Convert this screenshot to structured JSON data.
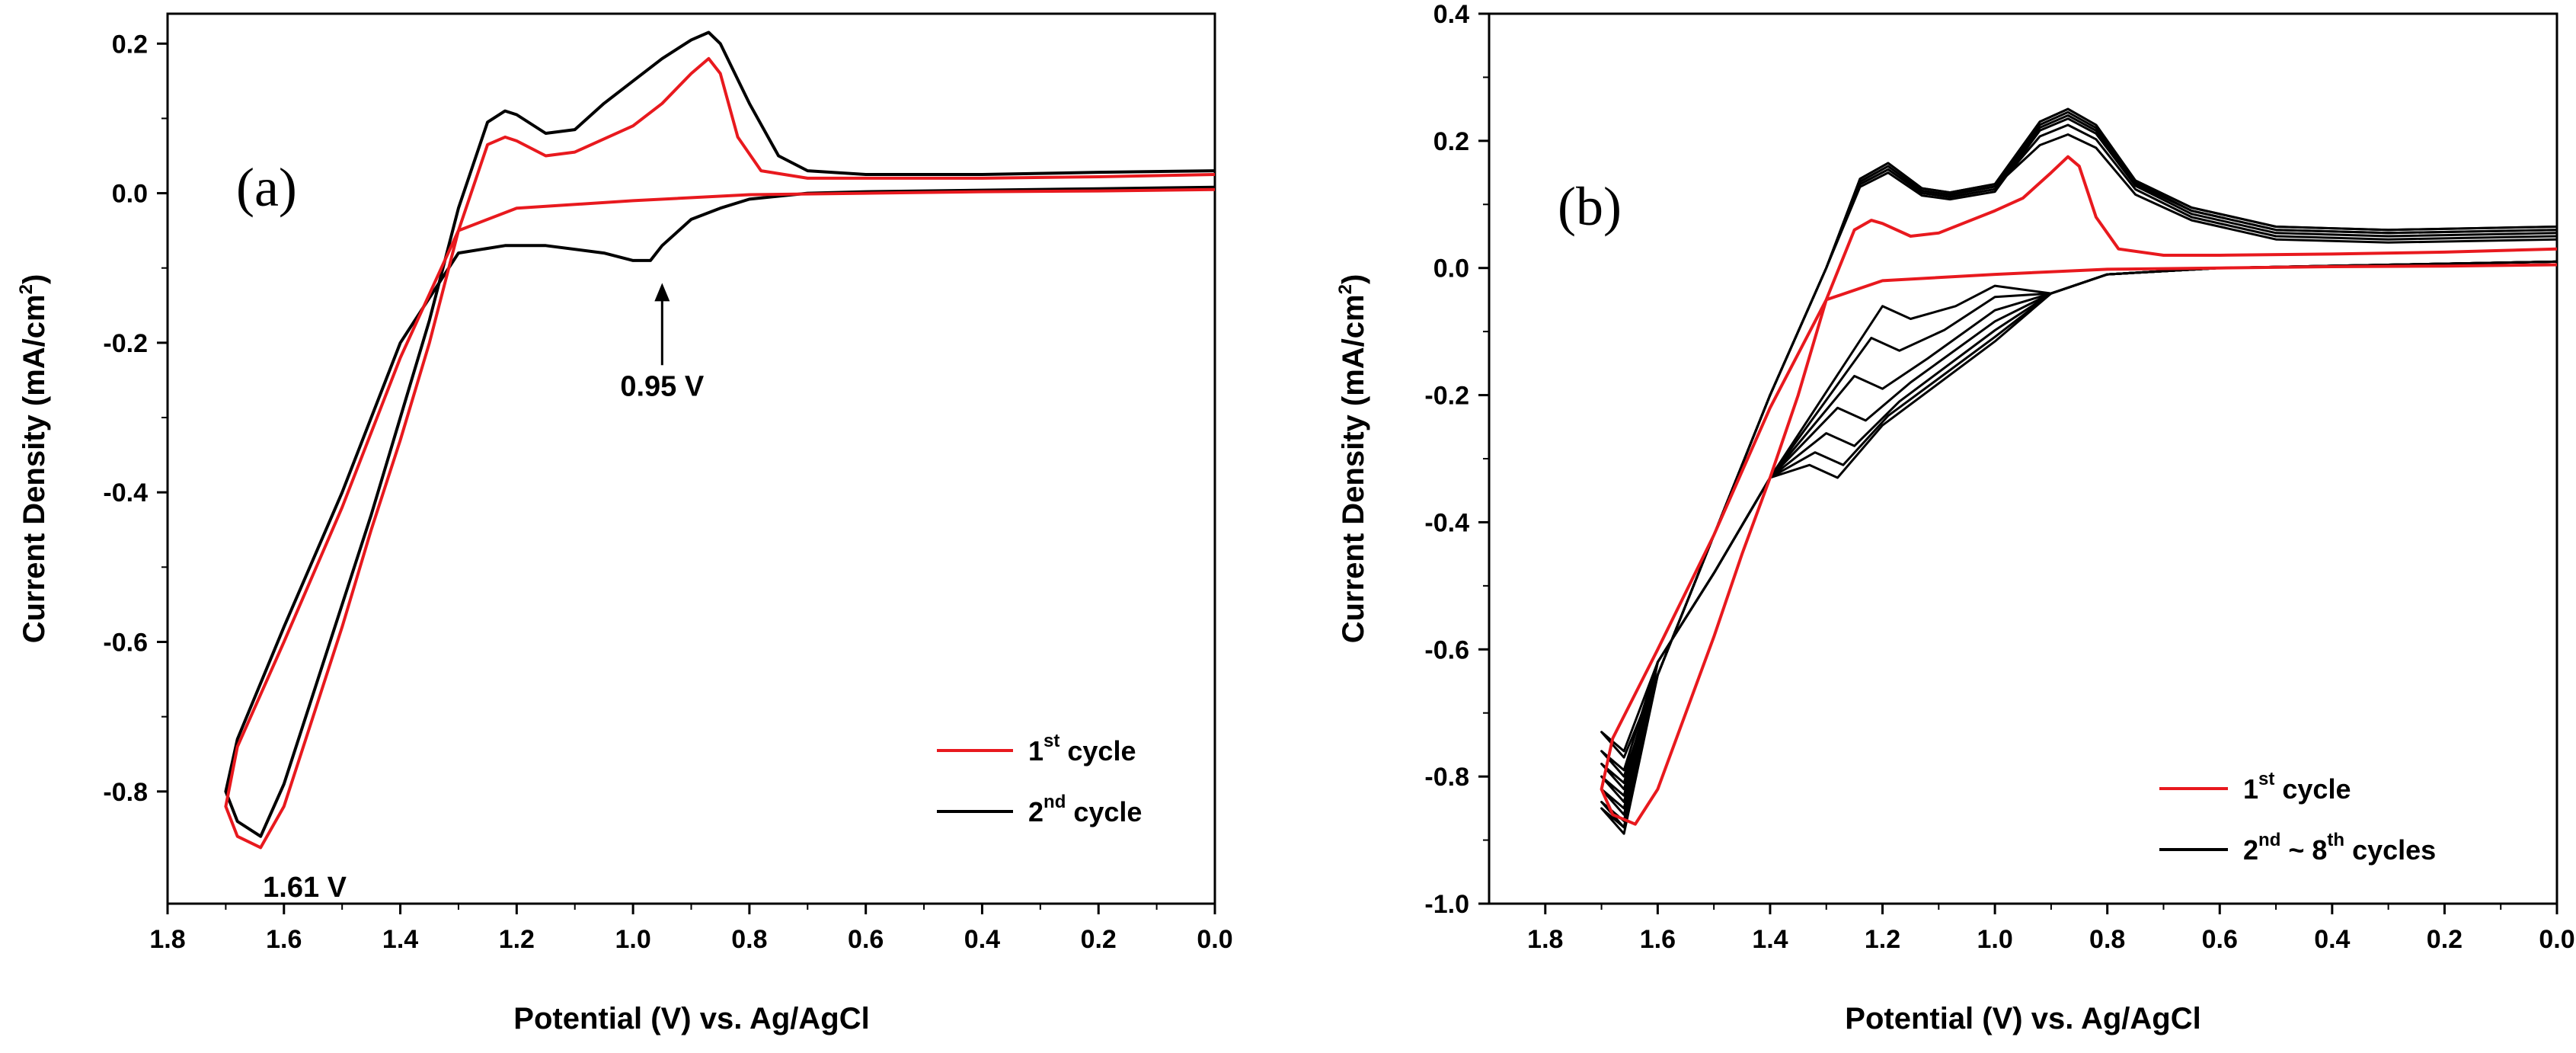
{
  "chart_data": [
    {
      "type": "line",
      "panel_label": "(a)",
      "xlabel": "Potential (V) vs. Ag/AgCl",
      "ylabel": "Current Density (mA/cm",
      "ylabel_sup": "2",
      "ylabel_end": ")",
      "xlim": [
        1.8,
        0.0
      ],
      "ylim": [
        -0.95,
        0.24
      ],
      "xticks": [
        "1.8",
        "1.6",
        "1.4",
        "1.2",
        "1.0",
        "0.8",
        "0.6",
        "0.4",
        "0.2",
        "0.0"
      ],
      "yticks": [
        "0.2",
        "0.0",
        "-0.2",
        "-0.4",
        "-0.6",
        "-0.8"
      ],
      "legend_position": "bottom-right",
      "series": [
        {
          "name": "1st cycle",
          "legend_main": "1",
          "legend_sup": "st",
          "legend_rest": " cycle",
          "color": "#e8191e",
          "points": [
            [
              0.0,
              0.025
            ],
            [
              0.2,
              0.022
            ],
            [
              0.4,
              0.02
            ],
            [
              0.6,
              0.02
            ],
            [
              0.7,
              0.02
            ],
            [
              0.78,
              0.03
            ],
            [
              0.82,
              0.075
            ],
            [
              0.85,
              0.16
            ],
            [
              0.87,
              0.18
            ],
            [
              0.9,
              0.16
            ],
            [
              0.95,
              0.12
            ],
            [
              1.0,
              0.09
            ],
            [
              1.1,
              0.055
            ],
            [
              1.15,
              0.05
            ],
            [
              1.2,
              0.07
            ],
            [
              1.22,
              0.075
            ],
            [
              1.25,
              0.065
            ],
            [
              1.3,
              -0.05
            ],
            [
              1.35,
              -0.2
            ],
            [
              1.4,
              -0.33
            ],
            [
              1.45,
              -0.45
            ],
            [
              1.5,
              -0.58
            ],
            [
              1.55,
              -0.7
            ],
            [
              1.6,
              -0.82
            ],
            [
              1.64,
              -0.875
            ],
            [
              1.68,
              -0.86
            ],
            [
              1.7,
              -0.82
            ],
            [
              1.68,
              -0.74
            ],
            [
              1.6,
              -0.6
            ],
            [
              1.5,
              -0.42
            ],
            [
              1.4,
              -0.22
            ],
            [
              1.3,
              -0.05
            ],
            [
              1.2,
              -0.02
            ],
            [
              1.0,
              -0.01
            ],
            [
              0.8,
              -0.002
            ],
            [
              0.6,
              0.0
            ],
            [
              0.4,
              0.002
            ],
            [
              0.2,
              0.003
            ],
            [
              0.0,
              0.005
            ]
          ]
        },
        {
          "name": "2nd cycle",
          "legend_main": "2",
          "legend_sup": "nd",
          "legend_rest": " cycle",
          "color": "#000000",
          "points": [
            [
              0.0,
              0.03
            ],
            [
              0.2,
              0.028
            ],
            [
              0.4,
              0.025
            ],
            [
              0.6,
              0.025
            ],
            [
              0.7,
              0.03
            ],
            [
              0.75,
              0.05
            ],
            [
              0.8,
              0.12
            ],
            [
              0.85,
              0.2
            ],
            [
              0.87,
              0.215
            ],
            [
              0.9,
              0.205
            ],
            [
              0.95,
              0.18
            ],
            [
              1.0,
              0.15
            ],
            [
              1.05,
              0.12
            ],
            [
              1.1,
              0.085
            ],
            [
              1.15,
              0.08
            ],
            [
              1.2,
              0.105
            ],
            [
              1.22,
              0.11
            ],
            [
              1.25,
              0.095
            ],
            [
              1.3,
              -0.02
            ],
            [
              1.35,
              -0.17
            ],
            [
              1.4,
              -0.3
            ],
            [
              1.45,
              -0.43
            ],
            [
              1.5,
              -0.55
            ],
            [
              1.55,
              -0.67
            ],
            [
              1.6,
              -0.79
            ],
            [
              1.64,
              -0.86
            ],
            [
              1.68,
              -0.84
            ],
            [
              1.7,
              -0.8
            ],
            [
              1.68,
              -0.73
            ],
            [
              1.6,
              -0.58
            ],
            [
              1.5,
              -0.4
            ],
            [
              1.4,
              -0.2
            ],
            [
              1.3,
              -0.08
            ],
            [
              1.22,
              -0.07
            ],
            [
              1.15,
              -0.07
            ],
            [
              1.05,
              -0.08
            ],
            [
              1.0,
              -0.09
            ],
            [
              0.97,
              -0.09
            ],
            [
              0.95,
              -0.07
            ],
            [
              0.9,
              -0.035
            ],
            [
              0.85,
              -0.02
            ],
            [
              0.8,
              -0.008
            ],
            [
              0.7,
              0.0
            ],
            [
              0.6,
              0.002
            ],
            [
              0.4,
              0.004
            ],
            [
              0.2,
              0.006
            ],
            [
              0.0,
              0.008
            ]
          ]
        }
      ],
      "annotations": [
        {
          "text": "0.95 V",
          "x": 0.95,
          "y": -0.14,
          "arrow_to": [
            0.95,
            -0.12
          ],
          "arrow_from": [
            0.95,
            -0.23
          ]
        },
        {
          "text": "1.61 V",
          "x": 1.61,
          "y": -0.9
        }
      ]
    },
    {
      "type": "line",
      "panel_label": "(b)",
      "xlabel": "Potential (V) vs. Ag/AgCl",
      "ylabel": "Current Density (mA/cm",
      "ylabel_sup": "2",
      "ylabel_end": ")",
      "xlim": [
        1.9,
        0.0
      ],
      "ylim": [
        -1.0,
        0.4
      ],
      "xticks": [
        "1.8",
        "1.6",
        "1.4",
        "1.2",
        "1.0",
        "0.8",
        "0.6",
        "0.4",
        "0.2",
        "0.0"
      ],
      "yticks": [
        "0.4",
        "0.2",
        "0.0",
        "-0.2",
        "-0.4",
        "-0.6",
        "-0.8",
        "-1.0"
      ],
      "legend_position": "bottom-left",
      "series": [
        {
          "name": "1st cycle",
          "legend_main": "1",
          "legend_sup": "st",
          "legend_rest": " cycle",
          "color": "#e8191e",
          "points": [
            [
              0.0,
              0.03
            ],
            [
              0.2,
              0.025
            ],
            [
              0.4,
              0.022
            ],
            [
              0.6,
              0.02
            ],
            [
              0.7,
              0.02
            ],
            [
              0.78,
              0.03
            ],
            [
              0.82,
              0.08
            ],
            [
              0.85,
              0.16
            ],
            [
              0.87,
              0.175
            ],
            [
              0.9,
              0.15
            ],
            [
              0.95,
              0.11
            ],
            [
              1.0,
              0.09
            ],
            [
              1.1,
              0.055
            ],
            [
              1.15,
              0.05
            ],
            [
              1.2,
              0.07
            ],
            [
              1.22,
              0.075
            ],
            [
              1.25,
              0.06
            ],
            [
              1.3,
              -0.05
            ],
            [
              1.35,
              -0.2
            ],
            [
              1.4,
              -0.33
            ],
            [
              1.45,
              -0.45
            ],
            [
              1.5,
              -0.58
            ],
            [
              1.55,
              -0.7
            ],
            [
              1.6,
              -0.82
            ],
            [
              1.64,
              -0.875
            ],
            [
              1.68,
              -0.86
            ],
            [
              1.7,
              -0.82
            ],
            [
              1.68,
              -0.74
            ],
            [
              1.6,
              -0.6
            ],
            [
              1.5,
              -0.42
            ],
            [
              1.4,
              -0.22
            ],
            [
              1.3,
              -0.05
            ],
            [
              1.2,
              -0.02
            ],
            [
              1.0,
              -0.01
            ],
            [
              0.8,
              -0.002
            ],
            [
              0.6,
              0.0
            ],
            [
              0.4,
              0.002
            ],
            [
              0.2,
              0.003
            ],
            [
              0.0,
              0.005
            ]
          ]
        },
        {
          "name": "2nd ~ 8th cycles",
          "legend_main": "2",
          "legend_sup": "nd",
          "legend_rest": " ~ 8",
          "legend_sup2": "th",
          "legend_rest2": " cycles",
          "color": "#000000",
          "cycles": [
            {
              "peak_a": 0.16,
              "peak_b": 0.21,
              "cath": -0.08,
              "cath_x": 1.15,
              "low": -0.75,
              "tail": 0.045
            },
            {
              "peak_a": 0.155,
              "peak_b": 0.225,
              "cath": -0.13,
              "cath_x": 1.17,
              "low": -0.78,
              "tail": 0.05
            },
            {
              "peak_a": 0.15,
              "peak_b": 0.235,
              "cath": -0.19,
              "cath_x": 1.2,
              "low": -0.8,
              "tail": 0.055
            },
            {
              "peak_a": 0.155,
              "peak_b": 0.24,
              "cath": -0.24,
              "cath_x": 1.23,
              "low": -0.82,
              "tail": 0.06
            },
            {
              "peak_a": 0.16,
              "peak_b": 0.245,
              "cath": -0.28,
              "cath_x": 1.25,
              "low": -0.84,
              "tail": 0.06
            },
            {
              "peak_a": 0.165,
              "peak_b": 0.25,
              "cath": -0.31,
              "cath_x": 1.27,
              "low": -0.86,
              "tail": 0.065
            },
            {
              "peak_a": 0.165,
              "peak_b": 0.25,
              "cath": -0.33,
              "cath_x": 1.28,
              "low": -0.87,
              "tail": 0.065
            }
          ]
        }
      ]
    }
  ]
}
